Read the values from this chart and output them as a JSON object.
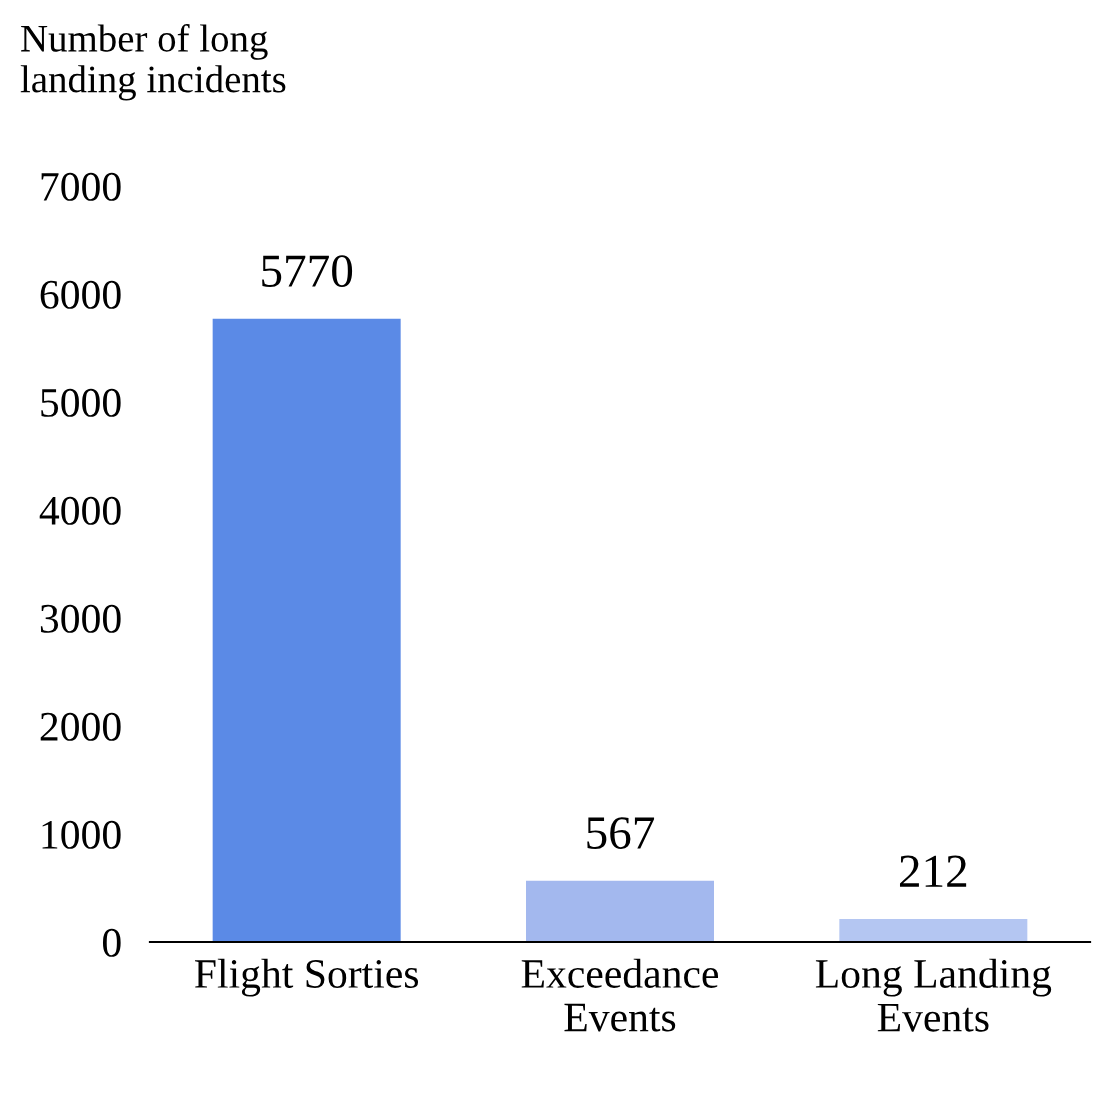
{
  "chart_data": {
    "type": "bar",
    "ylabel": "Number of long\nlanding incidents",
    "categories": [
      "Flight Sorties",
      "Exceedance\nEvents",
      "Long Landing\nEvents"
    ],
    "values": [
      5770,
      567,
      212
    ],
    "colors": [
      "#5b8ae6",
      "#a3b8ee",
      "#b4c6f2"
    ],
    "ylim": [
      0,
      7000
    ],
    "yticks": [
      0,
      1000,
      2000,
      3000,
      4000,
      5000,
      6000,
      7000
    ],
    "data_labels": true,
    "grid": false,
    "legend": false
  }
}
